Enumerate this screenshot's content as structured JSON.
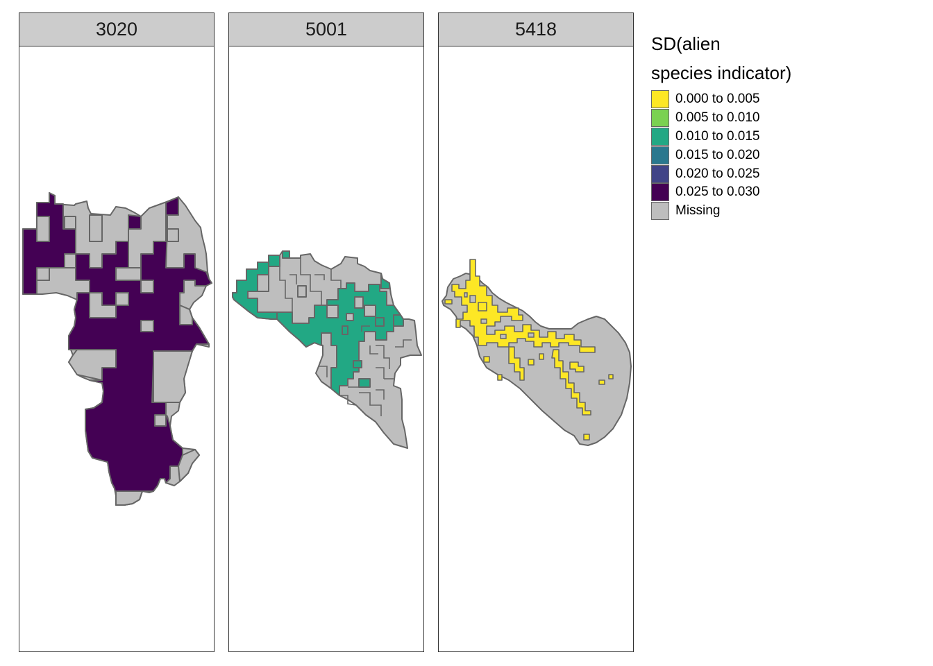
{
  "legend": {
    "title_line1": "SD(alien",
    "title_line2": "species indicator)",
    "items": [
      {
        "label": "0.000 to 0.005",
        "color": "#fde725"
      },
      {
        "label": "0.005 to 0.010",
        "color": "#7ad151"
      },
      {
        "label": "0.010 to 0.015",
        "color": "#22a884"
      },
      {
        "label": "0.015 to 0.020",
        "color": "#2a788e"
      },
      {
        "label": "0.020 to 0.025",
        "color": "#414487"
      },
      {
        "label": "0.025 to 0.030",
        "color": "#440154"
      },
      {
        "label": "Missing",
        "color": "#bebebe"
      }
    ]
  },
  "colors": {
    "missing": "#bebebe",
    "outline": "#666666",
    "strip": "#cccccc"
  },
  "panels": [
    {
      "label": "3020",
      "fill_class": "0.025 to 0.030",
      "fill_color": "#440154"
    },
    {
      "label": "5001",
      "fill_class": "0.010 to 0.015",
      "fill_color": "#22a884"
    },
    {
      "label": "5418",
      "fill_class": "0.000 to 0.005",
      "fill_color": "#fde725"
    }
  ]
}
